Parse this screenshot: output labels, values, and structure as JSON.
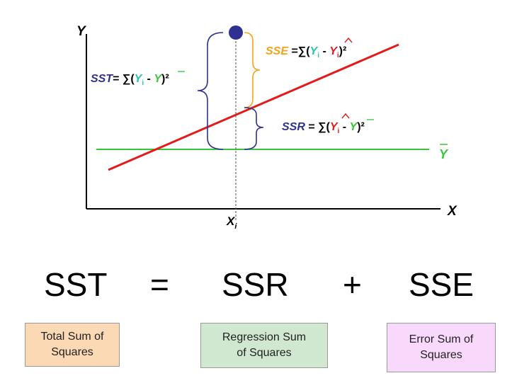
{
  "axes": {
    "y_label": "Y",
    "x_label": "X",
    "xi_base": "X",
    "xi_sub": "i"
  },
  "mean_label": "Y",
  "sst": {
    "name": "SST",
    "eq": "= ∑(",
    "y": "Y",
    "sub": "i",
    "minus": " - ",
    "ybar": "Y",
    "close": ")²",
    "name_color": "#2e3192"
  },
  "sse": {
    "name": "SSE",
    "eq": " =∑(",
    "y": "Y",
    "sub": "i",
    "minus": " - ",
    "yhat": "Y",
    "hatsub": "i",
    "close": ")²",
    "name_color": "#f7a21b"
  },
  "ssr": {
    "name": "SSR",
    "eq": " = ∑(",
    "yhat": "Y",
    "hatsub": "i",
    "minus": " - ",
    "ybar": "Y",
    "close": ")²",
    "name_color": "#2e3192"
  },
  "equation": {
    "t1": "SST",
    "op1": "=",
    "t2": "SSR",
    "op2": "+",
    "t3": "SSE"
  },
  "boxes": [
    {
      "line1": "Total Sum of",
      "line2": "Squares",
      "bg": "#fad9b4"
    },
    {
      "line1": "Regression Sum",
      "line2": "of Squares",
      "bg": "#cfe8cf"
    },
    {
      "line1": "Error Sum of",
      "line2": "Squares",
      "bg": "#f9d9fb"
    }
  ],
  "colors": {
    "regression_line": "#e31b1b",
    "mean_line": "#39c639",
    "point": "#2e3192",
    "y_symbol": "#2bc4b0",
    "ybar_symbol": "#39c639",
    "yhat_symbol": "#e31b1b"
  }
}
